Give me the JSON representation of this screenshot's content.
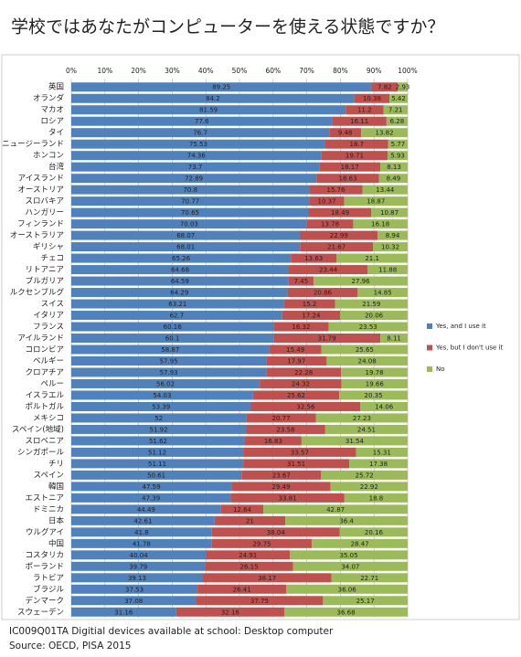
{
  "chart_data": {
    "type": "stacked_bar_horizontal",
    "title": "学校ではあなたがコンピューターを使える状態ですか？",
    "categories": [
      "英国",
      "オランダ",
      "マカオ",
      "ロシア",
      "タイ",
      "ニュージーランド",
      "ホンコン",
      "台湾",
      "アイスランド",
      "オーストリア",
      "スロバキア",
      "ハンガリー",
      "フィンランド",
      "オーストラリア",
      "ギリシャ",
      "チェコ",
      "リトアニア",
      "ブルガリア",
      "ルクセンブルグ",
      "スイス",
      "イタリア",
      "フランス",
      "アイルランド",
      "コロンビア",
      "ベルギー",
      "クロアチア",
      "ペルー",
      "イスラエル",
      "ポルトガル",
      "メキシコ",
      "スペイン(地域)",
      "スロベニア",
      "シンガポール",
      "チリ",
      "スペイン",
      "韓国",
      "エストニア",
      "ドミニカ",
      "日本",
      "ウルグアイ",
      "中国",
      "コスタリカ",
      "ポーランド",
      "ラトビア",
      "ブラジル",
      "デンマーク",
      "スウェーデン"
    ],
    "series": [
      {
        "name": "Yes, and I use it",
        "color": "#4f81bd",
        "values": [
          89.25,
          84.2,
          81.59,
          77.6,
          76.7,
          75.53,
          74.36,
          73.7,
          72.89,
          70.8,
          70.77,
          70.65,
          70.03,
          68.07,
          68.01,
          65.26,
          64.68,
          64.59,
          64.29,
          63.21,
          62.7,
          60.16,
          60.1,
          58.87,
          57.95,
          57.93,
          56.02,
          54.03,
          53.39,
          52,
          51.92,
          51.62,
          51.12,
          51.11,
          50.61,
          47.59,
          47.39,
          44.49,
          42.61,
          41.8,
          41.78,
          40.04,
          39.79,
          39.13,
          37.53,
          37.08,
          31.16
        ]
      },
      {
        "name": "Yes, but I don't use it",
        "color": "#c0504d",
        "values": [
          7.82,
          10.38,
          11.2,
          16.11,
          9.48,
          18.7,
          19.71,
          18.17,
          18.63,
          15.76,
          10.37,
          18.49,
          13.78,
          22.99,
          21.67,
          13.63,
          23.44,
          7.45,
          20.86,
          15.2,
          17.24,
          16.32,
          31.79,
          15.49,
          17.97,
          22.28,
          24.32,
          25.62,
          32.56,
          20.77,
          23.58,
          16.83,
          33.57,
          31.51,
          23.67,
          29.49,
          33.81,
          12.64,
          21,
          38.04,
          29.75,
          24.91,
          26.15,
          38.17,
          26.41,
          37.75,
          32.16
        ]
      },
      {
        "name": "No",
        "color": "#9bbb59",
        "values": [
          2.93,
          5.42,
          7.21,
          6.28,
          13.82,
          5.77,
          5.93,
          8.13,
          8.49,
          13.44,
          18.87,
          10.87,
          16.18,
          8.94,
          10.32,
          21.1,
          11.88,
          27.96,
          14.85,
          21.59,
          20.06,
          23.53,
          8.11,
          25.65,
          24.08,
          19.78,
          19.66,
          20.35,
          14.06,
          27.23,
          24.51,
          31.54,
          15.31,
          17.38,
          25.72,
          22.92,
          18.8,
          42.87,
          36.4,
          20.16,
          28.47,
          35.05,
          34.07,
          22.71,
          36.06,
          25.17,
          36.68
        ]
      }
    ],
    "xlim": [
      0,
      100
    ],
    "xticks": [
      {
        "value": 0,
        "label": "0%"
      },
      {
        "value": 10,
        "label": "10%"
      },
      {
        "value": 20,
        "label": "20%"
      },
      {
        "value": 30,
        "label": "30%"
      },
      {
        "value": 40,
        "label": "40%"
      },
      {
        "value": 50,
        "label": "50%"
      },
      {
        "value": 60,
        "label": "60%"
      },
      {
        "value": 70,
        "label": "70%"
      },
      {
        "value": 80,
        "label": "80%"
      },
      {
        "value": 90,
        "label": "90%"
      },
      {
        "value": 100,
        "label": "100%"
      }
    ],
    "grid": true,
    "legend": "right",
    "notes": [
      "IC009Q01TA Digitial devices available at school: Desktop computer",
      "Source: OECD, PISA 2015"
    ]
  }
}
